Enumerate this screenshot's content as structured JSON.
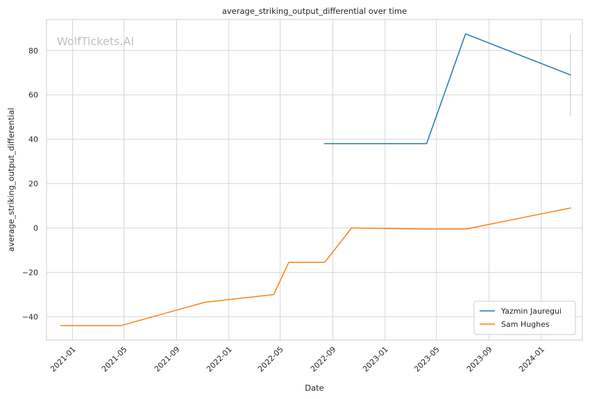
{
  "chart_data": {
    "type": "line",
    "title": "average_striking_output_differential over time",
    "xlabel": "Date",
    "ylabel": "average_striking_output_differential",
    "watermark": "WolfTickets.AI",
    "x_ticks": [
      "2021-01",
      "2021-05",
      "2021-09",
      "2022-01",
      "2022-05",
      "2022-09",
      "2023-01",
      "2023-05",
      "2023-09",
      "2024-01"
    ],
    "y_ticks": [
      -40,
      -20,
      0,
      20,
      40,
      60,
      80
    ],
    "xlim": [
      "2020-11-01",
      "2024-04-06"
    ],
    "ylim": [
      -50.5,
      94
    ],
    "grid": true,
    "legend_position": "lower-right",
    "series": [
      {
        "name": "Yazmin Jauregui",
        "color": "#1f77b4",
        "x": [
          "2022-08-13",
          "2023-04-08",
          "2023-07-08",
          "2024-03-09"
        ],
        "y": [
          38,
          38,
          87.5,
          69
        ]
      },
      {
        "name": "Sam Hughes",
        "color": "#ff7f0e",
        "x": [
          "2020-12-05",
          "2021-04-24",
          "2021-11-06",
          "2022-04-16",
          "2022-05-21",
          "2022-08-13",
          "2022-10-15",
          "2023-04-08",
          "2023-07-08",
          "2024-03-09"
        ],
        "y": [
          -44,
          -44,
          -33.5,
          -30,
          -15.5,
          -15.5,
          0,
          -0.5,
          -0.5,
          9
        ]
      }
    ],
    "error_bar": {
      "series": "Yazmin Jauregui",
      "x": "2024-03-09",
      "y_low": 50.5,
      "y_high": 87.5
    }
  }
}
